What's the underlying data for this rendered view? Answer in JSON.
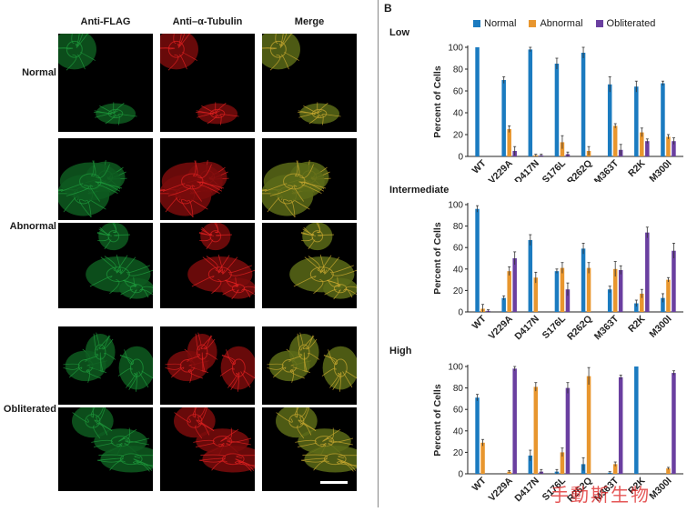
{
  "panel_a": {
    "columns": [
      "Anti-FLAG",
      "Anti–α-Tubulin",
      "Merge"
    ],
    "rows": [
      {
        "label": "Normal"
      },
      {
        "label": "Abnormal"
      },
      {
        "label": "Obliterated"
      }
    ]
  },
  "panel_b": {
    "letter": "B",
    "colors": {
      "normal": "#1b7bc0",
      "abnormal": "#e8962e",
      "obliterated": "#6a3fa0"
    },
    "legend": [
      "Normal",
      "Abnormal",
      "Obliterated"
    ],
    "watermark": "手動斯生物"
  },
  "chart_data": [
    {
      "type": "bar",
      "title": "Low",
      "ylabel": "Percent of Cells",
      "ylim": [
        0,
        100
      ],
      "yticks": [
        0,
        20,
        40,
        60,
        80,
        100
      ],
      "categories": [
        "WT",
        "V229A",
        "D417N",
        "S176L",
        "R262Q",
        "M363T",
        "R2K",
        "M300I"
      ],
      "series": [
        {
          "name": "Normal",
          "values": [
            100,
            70,
            98,
            85,
            95,
            66,
            64,
            67
          ],
          "errors": [
            0,
            3,
            2,
            5,
            5,
            7,
            5,
            2
          ]
        },
        {
          "name": "Abnormal",
          "values": [
            0,
            25,
            1,
            13,
            5,
            28,
            22,
            18
          ],
          "errors": [
            0,
            3,
            1,
            6,
            4,
            2,
            4,
            2
          ]
        },
        {
          "name": "Obliterated",
          "values": [
            0,
            5,
            1,
            2,
            0,
            6,
            14,
            14
          ],
          "errors": [
            0,
            4,
            1,
            2,
            0,
            5,
            2,
            3
          ]
        }
      ]
    },
    {
      "type": "bar",
      "title": "Intermediate",
      "ylabel": "Percent of Cells",
      "ylim": [
        0,
        100
      ],
      "yticks": [
        0,
        20,
        40,
        60,
        80,
        100
      ],
      "categories": [
        "WT",
        "V229A",
        "D417N",
        "S176L",
        "R262Q",
        "M363T",
        "R2K",
        "M300I"
      ],
      "series": [
        {
          "name": "Normal",
          "values": [
            96,
            13,
            67,
            38,
            59,
            21,
            8,
            13
          ],
          "errors": [
            3,
            2,
            5,
            2,
            5,
            3,
            3,
            4
          ]
        },
        {
          "name": "Abnormal",
          "values": [
            3,
            38,
            32,
            41,
            41,
            40,
            17,
            30
          ],
          "errors": [
            4,
            4,
            5,
            5,
            5,
            7,
            4,
            2
          ]
        },
        {
          "name": "Obliterated",
          "values": [
            1,
            50,
            0,
            21,
            0,
            39,
            74,
            57
          ],
          "errors": [
            1,
            6,
            0,
            6,
            0,
            4,
            5,
            7
          ]
        }
      ]
    },
    {
      "type": "bar",
      "title": "High",
      "ylabel": "Percent of Cells",
      "ylim": [
        0,
        100
      ],
      "yticks": [
        0,
        20,
        40,
        60,
        80,
        100
      ],
      "categories": [
        "WT",
        "V229A",
        "D417N",
        "S176L",
        "R262Q",
        "M363T",
        "R2K",
        "M300I"
      ],
      "series": [
        {
          "name": "Normal",
          "values": [
            71,
            0,
            17,
            2,
            9,
            1,
            100,
            0
          ],
          "errors": [
            3,
            0,
            5,
            2,
            6,
            1,
            0,
            0
          ]
        },
        {
          "name": "Abnormal",
          "values": [
            29,
            2,
            81,
            20,
            91,
            9,
            0,
            5
          ],
          "errors": [
            3,
            1,
            4,
            4,
            8,
            2,
            0,
            1
          ]
        },
        {
          "name": "Obliterated",
          "values": [
            0,
            98,
            2,
            80,
            0,
            90,
            0,
            94
          ],
          "errors": [
            0,
            2,
            2,
            5,
            0,
            2,
            0,
            2
          ]
        }
      ]
    }
  ]
}
